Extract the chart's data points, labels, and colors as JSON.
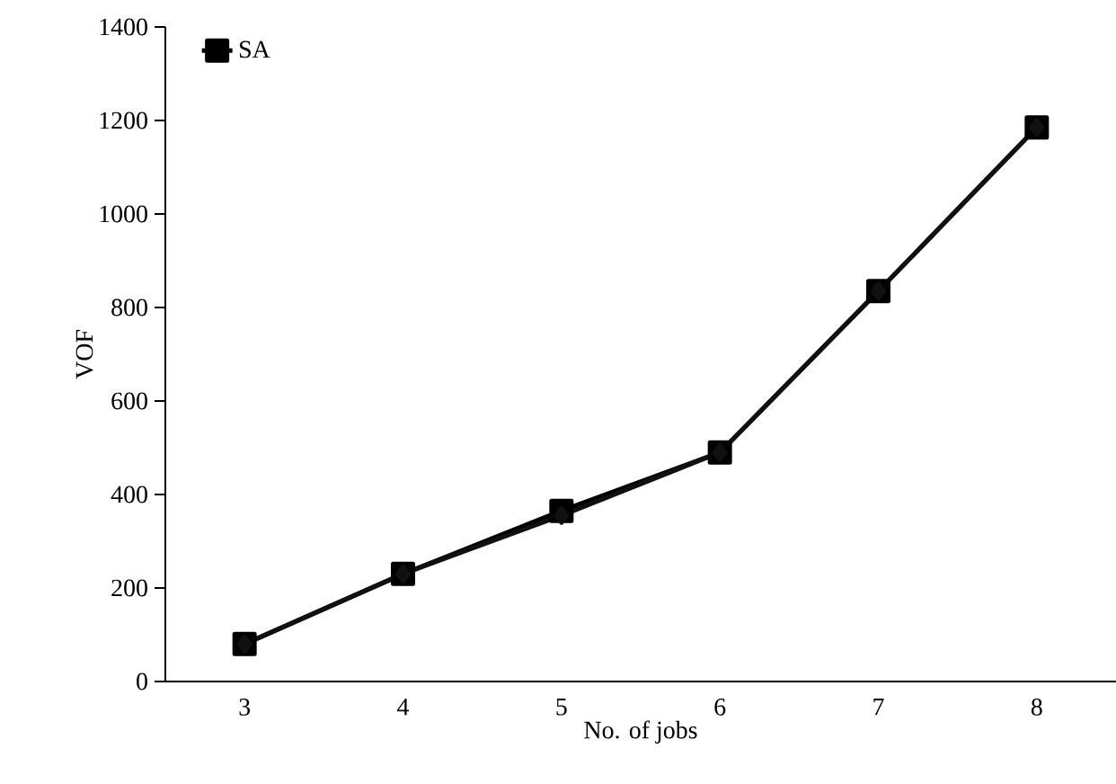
{
  "chart_data": {
    "type": "line",
    "xlabel": "No. of jobs",
    "ylabel": "VOF",
    "categories": [
      "3",
      "4",
      "5",
      "6",
      "7",
      "8"
    ],
    "series": [
      {
        "color": "#111111",
        "marker": "diamond",
        "values": [
          80,
          230,
          355,
          490,
          835,
          1185
        ]
      },
      {
        "name": "SA",
        "color": "#000000",
        "marker": "square",
        "values": [
          80,
          230,
          365,
          490,
          835,
          1185
        ]
      }
    ],
    "ylim": [
      0,
      1400
    ],
    "yticks": [
      0,
      200,
      400,
      600,
      800,
      1000,
      1200,
      1400
    ],
    "grid": false,
    "legend": "top left",
    "line_style": "solid"
  }
}
